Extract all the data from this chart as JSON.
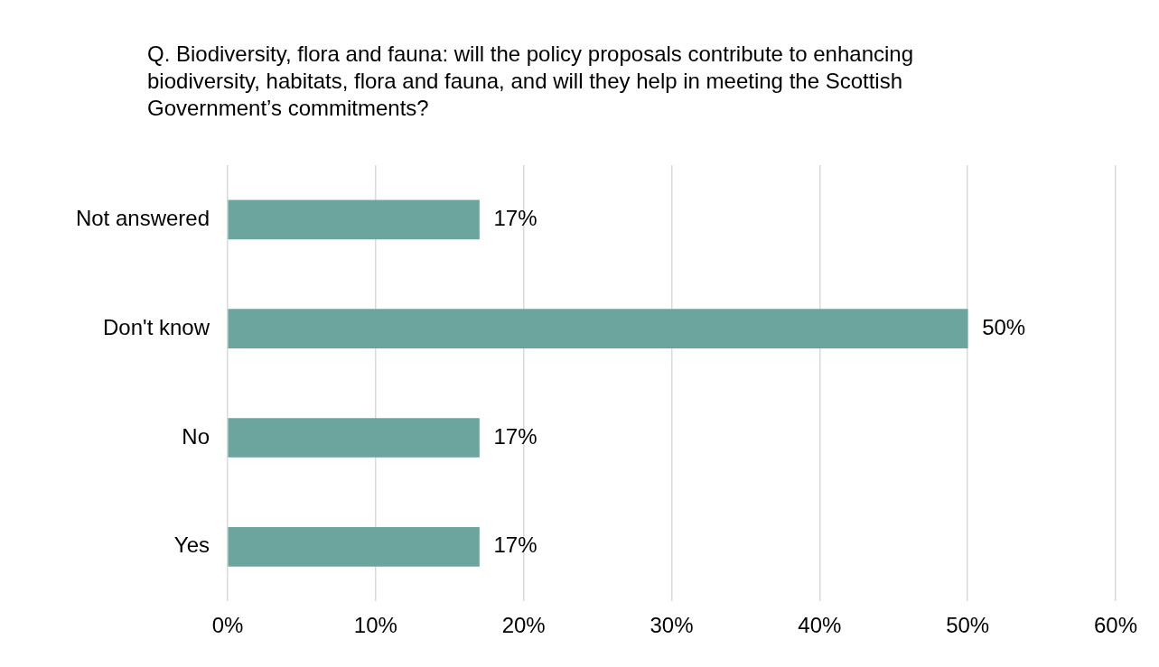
{
  "chart_data": {
    "type": "bar",
    "orientation": "horizontal",
    "title": "Q. Biodiversity, flora and fauna: will the policy proposals contribute to enhancing biodiversity, habitats, flora and fauna, and will they help in meeting the Scottish Government’s commitments?",
    "categories": [
      "Not answered",
      "Don't know",
      "No",
      "Yes"
    ],
    "values": [
      17,
      50,
      17,
      17
    ],
    "value_labels": [
      "17%",
      "50%",
      "17%",
      "17%"
    ],
    "color": "#6ca59e",
    "xlim": [
      0,
      60
    ],
    "xticks": [
      {
        "value": 0,
        "label": "0%"
      },
      {
        "value": 10,
        "label": "10%"
      },
      {
        "value": 20,
        "label": "20%"
      },
      {
        "value": 30,
        "label": "30%"
      },
      {
        "value": 40,
        "label": "40%"
      },
      {
        "value": 50,
        "label": "50%"
      },
      {
        "value": 60,
        "label": "60%"
      }
    ],
    "grid": "x",
    "legend": false
  }
}
